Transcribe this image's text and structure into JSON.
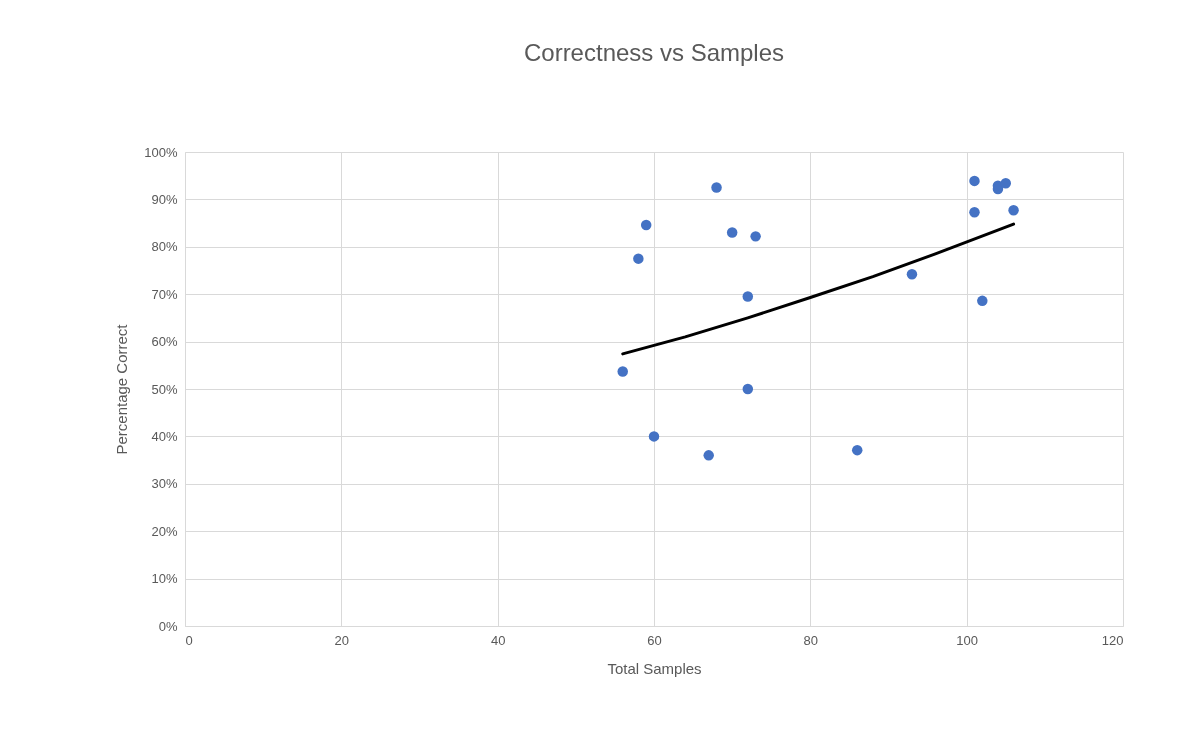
{
  "chart_data": {
    "type": "scatter",
    "title": "Correctness vs Samples",
    "xlabel": "Total Samples",
    "ylabel": "Percentage Correct",
    "xlim": [
      0,
      120
    ],
    "xticks": [
      0,
      20,
      40,
      60,
      80,
      100,
      120
    ],
    "ylim": [
      0,
      100
    ],
    "yticks": [
      {
        "value": 0,
        "label": "0%"
      },
      {
        "value": 10,
        "label": "10%"
      },
      {
        "value": 20,
        "label": "20%"
      },
      {
        "value": 30,
        "label": "30%"
      },
      {
        "value": 40,
        "label": "40%"
      },
      {
        "value": 50,
        "label": "50%"
      },
      {
        "value": 60,
        "label": "60%"
      },
      {
        "value": 70,
        "label": "70%"
      },
      {
        "value": 80,
        "label": "80%"
      },
      {
        "value": 90,
        "label": "90%"
      },
      {
        "value": 100,
        "label": "100%"
      }
    ],
    "grid": true,
    "marker": "circle",
    "series": [
      {
        "color": "#4472c4",
        "x": [
          56,
          58,
          59,
          60,
          67,
          68,
          70,
          72,
          72,
          73,
          86,
          93,
          101,
          101,
          102,
          104,
          104,
          105,
          106
        ],
        "values": [
          53.7,
          77.5,
          84.6,
          40,
          36,
          92.5,
          83,
          69.5,
          50,
          82.2,
          37.1,
          74.2,
          93.9,
          87.3,
          68.6,
          92.2,
          92.9,
          93.4,
          87.7
        ]
      },
      {
        "type": "line",
        "color": "#000000",
        "line_style": "solid",
        "marker": "none",
        "x": [
          56,
          64,
          72,
          80,
          88,
          96,
          106
        ],
        "values": [
          57.4,
          61,
          65,
          69.3,
          73.7,
          78.5,
          84.8
        ]
      }
    ]
  }
}
